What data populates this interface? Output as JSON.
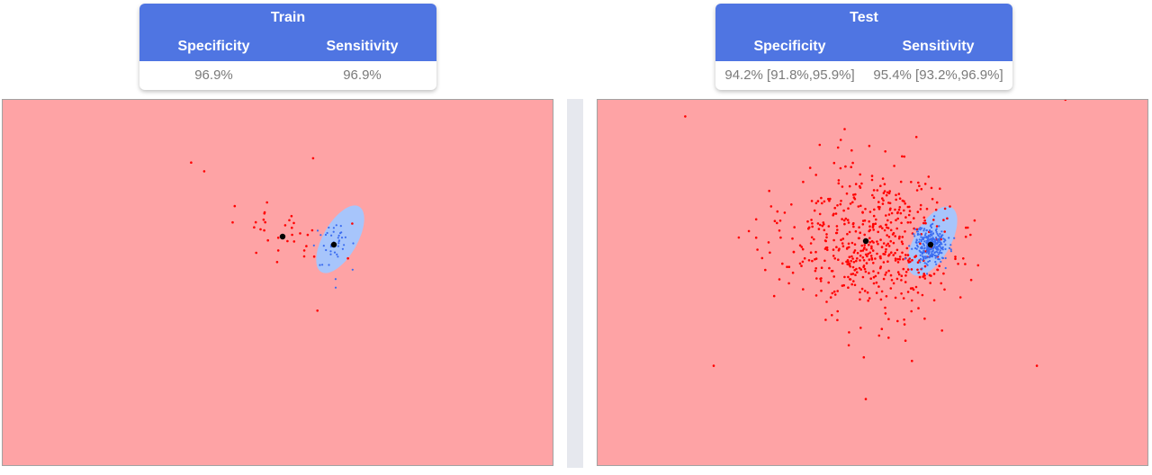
{
  "train_card": {
    "title": "Train",
    "col_specificity": "Specificity",
    "col_sensitivity": "Sensitivity",
    "specificity": "96.9%",
    "sensitivity": "96.9%"
  },
  "test_card": {
    "title": "Test",
    "col_specificity": "Specificity",
    "col_sensitivity": "Sensitivity",
    "specificity": "94.2% [91.8%,95.9%]",
    "sensitivity": "95.4% [93.2%,96.9%]"
  },
  "colors": {
    "header": "#4f75e2",
    "background_region": "#fea3a5",
    "ellipse": "#a7c5fb",
    "negative_points": "#ff0000",
    "positive_points": "#3b6cf0",
    "centroid": "#000000"
  },
  "chart_data": [
    {
      "type": "scatter",
      "panel": "train",
      "seed": 11,
      "red_count": 30,
      "blue_count": 40,
      "red_outliers": [
        [
          -1.8,
          1.5
        ],
        [
          -2.1,
          1.7
        ],
        [
          1.6,
          0.3
        ],
        [
          1.5,
          -0.5
        ],
        [
          0.7,
          1.8
        ],
        [
          0.8,
          -1.7
        ],
        [
          -1.1,
          0.7
        ]
      ],
      "blue_outliers": [
        [
          0.1,
          -1.55
        ]
      ]
    },
    {
      "type": "scatter",
      "panel": "test",
      "seed": 23,
      "red_count": 560,
      "blue_count": 260,
      "red_outliers": [
        [
          -1.9,
          1.5
        ],
        [
          -1.6,
          -1.5
        ],
        [
          1.0,
          2.1
        ],
        [
          2.1,
          1.7
        ],
        [
          1.8,
          -1.5
        ],
        [
          0.0,
          -1.9
        ]
      ],
      "blue_outliers": []
    }
  ]
}
